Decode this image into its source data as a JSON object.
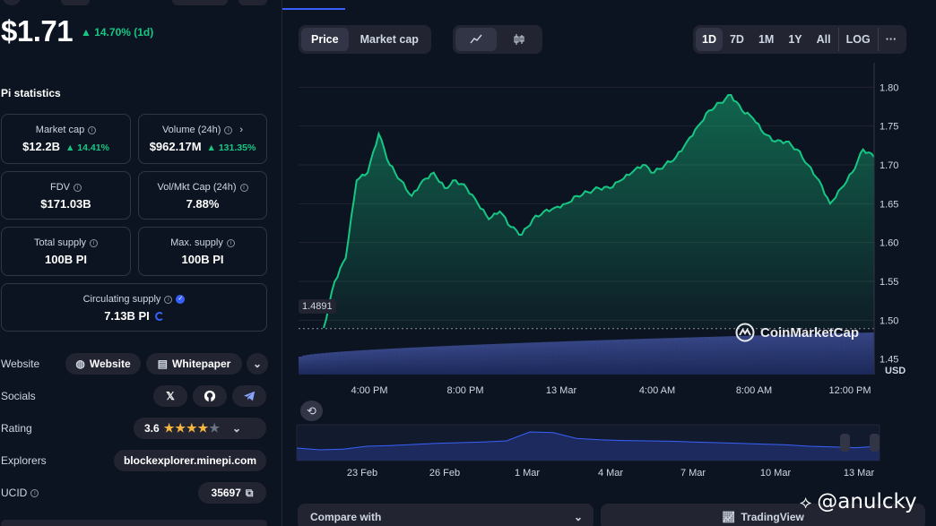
{
  "coin": {
    "price": "$1.71",
    "change": "▲ 14.70% (1d)"
  },
  "stats": {
    "title": "Pi statistics",
    "market_cap": {
      "label": "Market cap",
      "value": "$12.2B",
      "change": "▲ 14.41%"
    },
    "volume": {
      "label": "Volume (24h)",
      "value": "$962.17M",
      "change": "▲ 131.35%"
    },
    "fdv": {
      "label": "FDV",
      "value": "$171.03B"
    },
    "vol_mkt": {
      "label": "Vol/Mkt Cap (24h)",
      "value": "7.88%"
    },
    "total_supply": {
      "label": "Total supply",
      "value": "100B PI"
    },
    "max_supply": {
      "label": "Max. supply",
      "value": "100B PI"
    },
    "circulating": {
      "label": "Circulating supply",
      "value": "7.13B PI"
    }
  },
  "links": {
    "website_label": "Website",
    "website_btn": "Website",
    "whitepaper_btn": "Whitepaper",
    "socials_label": "Socials",
    "rating_label": "Rating",
    "rating_value": "3.6",
    "explorers_label": "Explorers",
    "explorer_btn": "blockexplorer.minepi.com",
    "ucid_label": "UCID",
    "ucid_value": "35697"
  },
  "chart_controls": {
    "price_tab": "Price",
    "marketcap_tab": "Market cap",
    "ranges": [
      "1D",
      "7D",
      "1M",
      "1Y",
      "All",
      "LOG"
    ],
    "more": "···",
    "brand": "CoinMarketCap",
    "compare_label": "Compare with",
    "tradingview_label": "TradingView"
  },
  "colors": {
    "background": "#0d1421",
    "accent": "#3861fb",
    "up": "#16c784",
    "card_border": "#323546"
  },
  "chart_data": {
    "type": "area",
    "ylabel": "USD",
    "yticks": [
      "1.80",
      "1.75",
      "1.70",
      "1.65",
      "1.60",
      "1.55",
      "1.50",
      "1.45"
    ],
    "ylim": [
      1.43,
      1.82
    ],
    "xticks": [
      "4:00 PM",
      "8:00 PM",
      "13 Mar",
      "4:00 AM",
      "8:00 AM",
      "12:00 PM"
    ],
    "baseline_label": "1.4891",
    "baseline": 1.4891,
    "series": [
      {
        "values": [
          1.49,
          1.55,
          1.58,
          1.68,
          1.69,
          1.74,
          1.7,
          1.68,
          1.66,
          1.68,
          1.69,
          1.67,
          1.68,
          1.67,
          1.65,
          1.63,
          1.64,
          1.62,
          1.61,
          1.63,
          1.64,
          1.645,
          1.65,
          1.66,
          1.665,
          1.67,
          1.67,
          1.68,
          1.69,
          1.7,
          1.69,
          1.7,
          1.71,
          1.73,
          1.75,
          1.77,
          1.78,
          1.79,
          1.77,
          1.76,
          1.74,
          1.73,
          1.73,
          1.72,
          1.7,
          1.68,
          1.65,
          1.67,
          1.69,
          1.72,
          1.71
        ]
      }
    ],
    "navigator_xticks": [
      "23 Feb",
      "26 Feb",
      "1 Mar",
      "4 Mar",
      "7 Mar",
      "10 Mar",
      "13 Mar"
    ],
    "navigator_values": [
      0.35,
      0.3,
      0.32,
      0.4,
      0.42,
      0.45,
      0.48,
      0.5,
      0.52,
      0.55,
      0.8,
      0.78,
      0.62,
      0.58,
      0.56,
      0.55,
      0.54,
      0.52,
      0.5,
      0.48,
      0.46,
      0.44,
      0.4,
      0.38,
      0.36,
      0.4
    ]
  },
  "watermark": "@anulcky"
}
